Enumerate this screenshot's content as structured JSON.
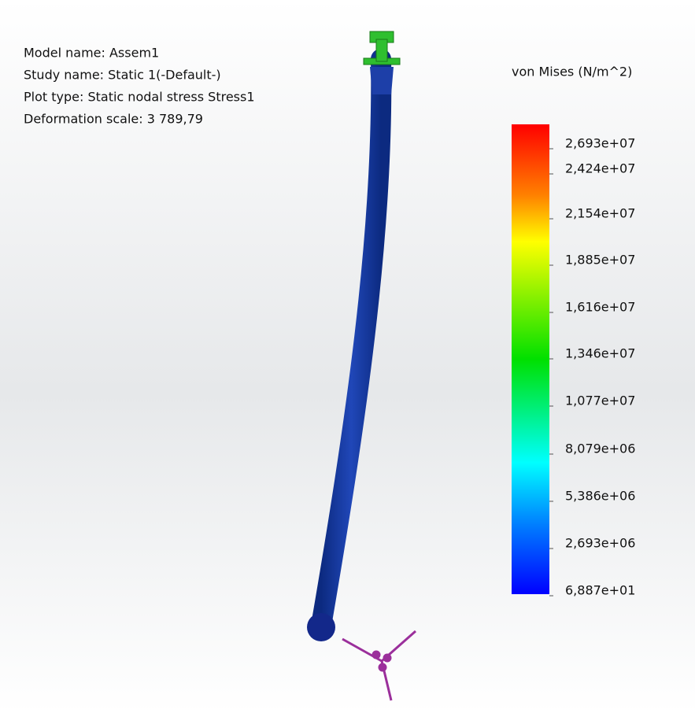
{
  "info": [
    "Model name: Assem1",
    "Study name: Static 1(-Default-)",
    "Plot type: Static nodal stress Stress1",
    "Deformation scale: 3 789,79"
  ],
  "legend": {
    "title": "von Mises (N/m^2)",
    "labels": [
      "2,693e+07",
      "2,424e+07",
      "2,154e+07",
      "1,885e+07",
      "1,616e+07",
      "1,346e+07",
      "1,077e+07",
      "8,079e+06",
      "5,386e+06",
      "2,693e+06",
      "6,887e+01"
    ]
  }
}
